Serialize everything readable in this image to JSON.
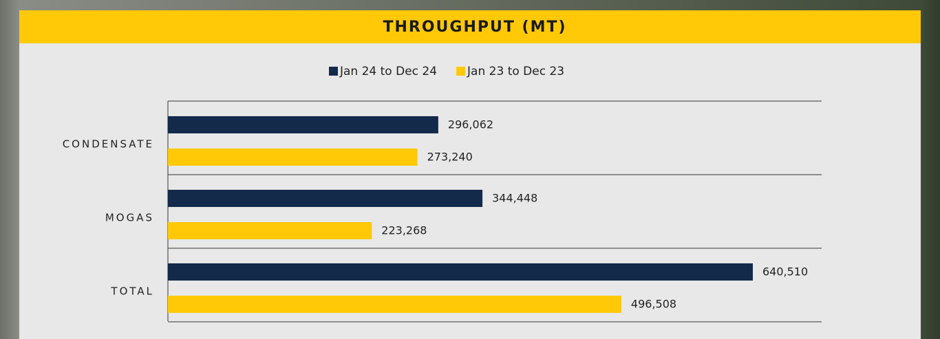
{
  "chart_data": {
    "type": "bar",
    "orientation": "horizontal",
    "title": "THROUGHPUT (MT)",
    "categories": [
      "CONDENSATE",
      "MOGAS",
      "TOTAL"
    ],
    "series": [
      {
        "name": "Jan 24 to Dec 24",
        "color": "#132a4b",
        "values": [
          296062,
          344448,
          640510
        ],
        "value_labels": [
          "296,062",
          "344,448",
          "640,510"
        ]
      },
      {
        "name": "Jan 23 to Dec 23",
        "color": "#ffc907",
        "values": [
          273240,
          223268,
          496508
        ],
        "value_labels": [
          "273,240",
          "223,268",
          "496,508"
        ]
      }
    ],
    "legend": "top"
  }
}
